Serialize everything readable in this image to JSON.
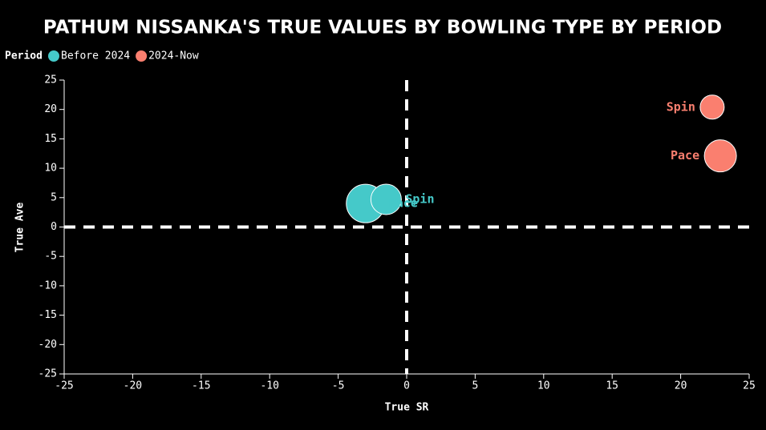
{
  "chart_data": {
    "type": "bubble",
    "title": "PATHUM NISSANKA'S TRUE VALUES BY BOWLING TYPE BY PERIOD",
    "legend_title": "Period",
    "x_label": "True SR",
    "y_label": "True Ave",
    "xlim": [
      -25,
      25
    ],
    "ylim": [
      -25,
      25
    ],
    "xticks": [
      -25,
      -20,
      -15,
      -10,
      -5,
      0,
      5,
      10,
      15,
      20,
      25
    ],
    "yticks": [
      -25,
      -20,
      -15,
      -10,
      -5,
      0,
      5,
      10,
      15,
      20,
      25
    ],
    "reference_x": 0,
    "reference_y": 0,
    "series": [
      {
        "name": "Before 2024",
        "color": "#45c9c9",
        "labels": [
          "Pace",
          "Spin"
        ],
        "x": [
          -3.0,
          -1.5
        ],
        "values": [
          4.0,
          4.7
        ],
        "sizes": [
          576,
          361
        ]
      },
      {
        "name": "2024-Now",
        "color": "#fa7f6f",
        "labels": [
          "Pace",
          "Spin"
        ],
        "x": [
          22.9,
          22.3
        ],
        "values": [
          12.1,
          20.4
        ],
        "sizes": [
          400,
          225
        ]
      }
    ]
  }
}
